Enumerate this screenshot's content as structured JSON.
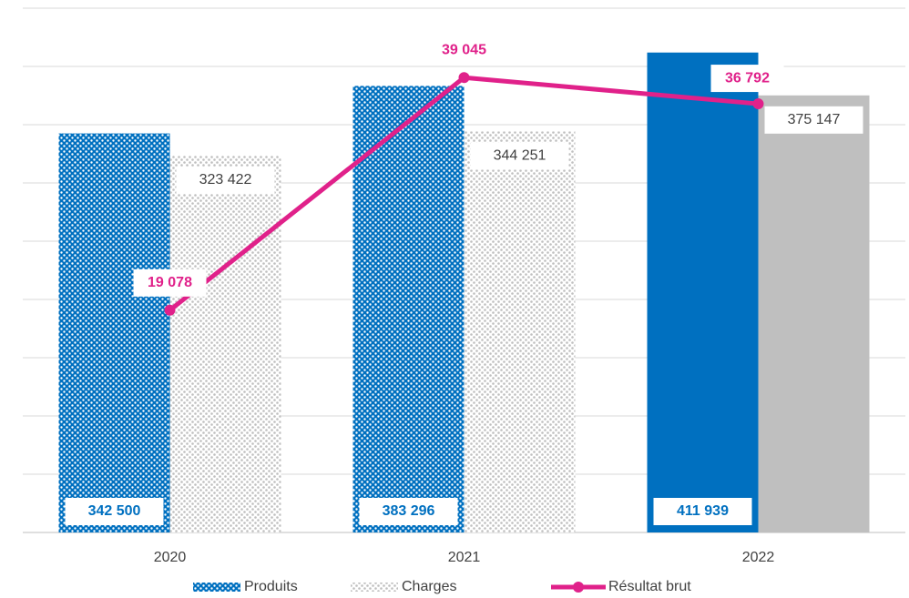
{
  "chart_data": {
    "type": "bar_line",
    "categories": [
      "2020",
      "2021",
      "2022"
    ],
    "series": [
      {
        "name": "Produits",
        "type": "bar",
        "color": "#0070c0",
        "patterned": [
          true,
          true,
          false
        ],
        "values": [
          342500,
          383296,
          411939
        ],
        "value_labels": [
          "342 500",
          "383 296",
          "411 939"
        ]
      },
      {
        "name": "Charges",
        "type": "bar",
        "color": "#bfbfbf",
        "patterned": [
          true,
          true,
          false
        ],
        "values": [
          323422,
          344251,
          375147
        ],
        "value_labels": [
          "323 422",
          "344 251",
          "375 147"
        ]
      },
      {
        "name": "Résultat  brut",
        "type": "line",
        "axis": "y2",
        "color": "#e0218a",
        "values": [
          19078,
          39045,
          36792
        ],
        "value_labels": [
          "19 078",
          "39 045",
          "36 792"
        ]
      }
    ],
    "ylim": [
      0,
      450000
    ],
    "yticks": [
      0,
      50000,
      100000,
      150000,
      200000,
      250000,
      300000,
      350000,
      400000,
      450000
    ],
    "y2lim": [
      0,
      45000
    ],
    "grid": true,
    "legend": "bottom"
  }
}
